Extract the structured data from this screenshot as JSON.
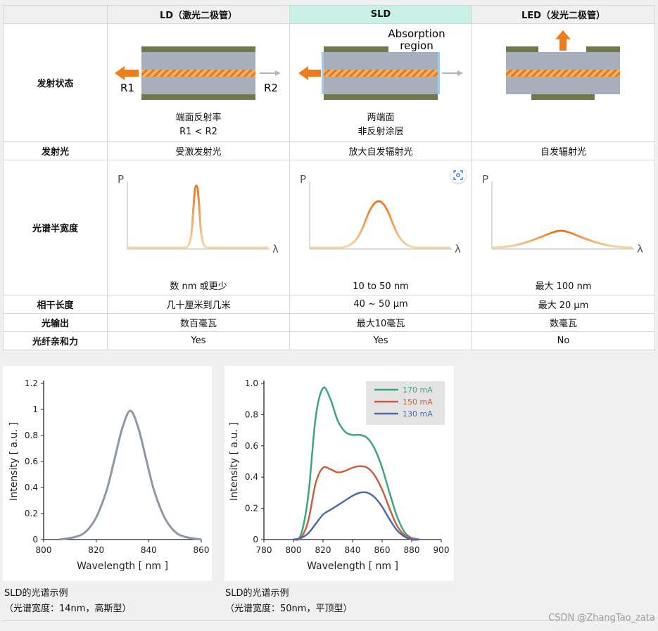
{
  "table": {
    "headers": [
      "",
      "LD（激光二极管）",
      "SLD",
      "LED（发光二极管）"
    ],
    "rows": {
      "emission_state": {
        "label": "发射状态",
        "ld": {
          "r1": "R1",
          "r2": "R2",
          "line1": "端面反射率",
          "line2": "R1 < R2"
        },
        "sld": {
          "absorption_line1": "Absorption",
          "absorption_line2": "region",
          "line1": "两端面",
          "line2": "非反射涂层"
        },
        "led": {}
      },
      "emitted_light": {
        "label": "发射光",
        "ld": "受激发射光",
        "sld": "放大自发辐射光",
        "led": "自发辐射光"
      },
      "spectral_width": {
        "label": "光谱半宽度",
        "axis_p": "P",
        "axis_lambda": "λ",
        "ld": "数 nm 或更少",
        "sld": "10 to 50 nm",
        "led": "最大 100 nm"
      },
      "coherence_length": {
        "label": "相干长度",
        "ld": "几十厘米到几米",
        "sld": "40 ~ 50 μm",
        "led": "最大 20 μm"
      },
      "light_output": {
        "label": "光输出",
        "ld": "数百毫瓦",
        "sld": "最大10毫瓦",
        "led": "数毫瓦"
      },
      "fiber_affinity": {
        "label": "光纤亲和力",
        "ld": "Yes",
        "sld": "Yes",
        "led": "No"
      }
    }
  },
  "colors": {
    "orange": "#f07d1a",
    "green": "#3aa87c",
    "red": "#c9613f",
    "blue": "#5068ad",
    "gray_curve": "#8e97a8"
  },
  "chart_data": [
    {
      "type": "line",
      "xlabel": "Wavelength [ nm ]",
      "ylabel": "Intensity [ a.u. ]",
      "xlim": [
        800,
        860
      ],
      "ylim": [
        0,
        1.2
      ],
      "xticks": [
        800,
        820,
        840,
        860
      ],
      "yticks": [
        0,
        0.2,
        0.4,
        0.6,
        0.8,
        1,
        1.2
      ],
      "series": [
        {
          "x": [
            806,
            812,
            816,
            820,
            824,
            827,
            830,
            833,
            836,
            839,
            842,
            846,
            850,
            854,
            860
          ],
          "y": [
            0.0,
            0.02,
            0.06,
            0.17,
            0.38,
            0.62,
            0.86,
            0.99,
            0.86,
            0.62,
            0.38,
            0.17,
            0.06,
            0.02,
            0.0
          ]
        }
      ]
    },
    {
      "type": "line",
      "xlabel": "Wavelength [ nm ]",
      "ylabel": "Intensity [ a.u. ]",
      "xlim": [
        780,
        900
      ],
      "ylim": [
        0,
        1.0
      ],
      "xticks": [
        780,
        800,
        820,
        840,
        860,
        880,
        900
      ],
      "yticks": [
        0,
        0.2,
        0.4,
        0.6,
        0.8,
        1.0
      ],
      "legend": "top-right",
      "series": [
        {
          "name": "170 mA",
          "x": [
            800,
            805,
            810,
            815,
            820,
            825,
            830,
            835,
            840,
            845,
            850,
            855,
            860,
            865,
            870,
            875,
            880,
            885
          ],
          "y": [
            0.0,
            0.03,
            0.28,
            0.78,
            0.97,
            0.9,
            0.76,
            0.69,
            0.67,
            0.67,
            0.65,
            0.58,
            0.46,
            0.3,
            0.15,
            0.05,
            0.01,
            0.0
          ]
        },
        {
          "name": "150 mA",
          "x": [
            800,
            805,
            810,
            815,
            820,
            825,
            830,
            835,
            840,
            845,
            850,
            855,
            860,
            865,
            870,
            875,
            880,
            885
          ],
          "y": [
            0.0,
            0.01,
            0.12,
            0.36,
            0.46,
            0.45,
            0.43,
            0.44,
            0.46,
            0.47,
            0.46,
            0.41,
            0.32,
            0.2,
            0.09,
            0.03,
            0.01,
            0.0
          ]
        },
        {
          "name": "130 mA",
          "x": [
            800,
            805,
            810,
            815,
            820,
            825,
            830,
            835,
            840,
            845,
            850,
            855,
            860,
            865,
            870,
            875,
            880,
            885
          ],
          "y": [
            0.0,
            0.01,
            0.04,
            0.1,
            0.16,
            0.19,
            0.22,
            0.25,
            0.28,
            0.3,
            0.3,
            0.27,
            0.21,
            0.13,
            0.06,
            0.02,
            0.0,
            0.0
          ]
        }
      ]
    }
  ],
  "captions": {
    "left": {
      "line1": "SLD的光谱示例",
      "line2": "（光谱宽度：14nm，高斯型）"
    },
    "right": {
      "line1": "SLD的光谱示例",
      "line2": "（光谱宽度：50nm，平顶型）"
    }
  },
  "watermark": "CSDN @ZhangTao_zata"
}
